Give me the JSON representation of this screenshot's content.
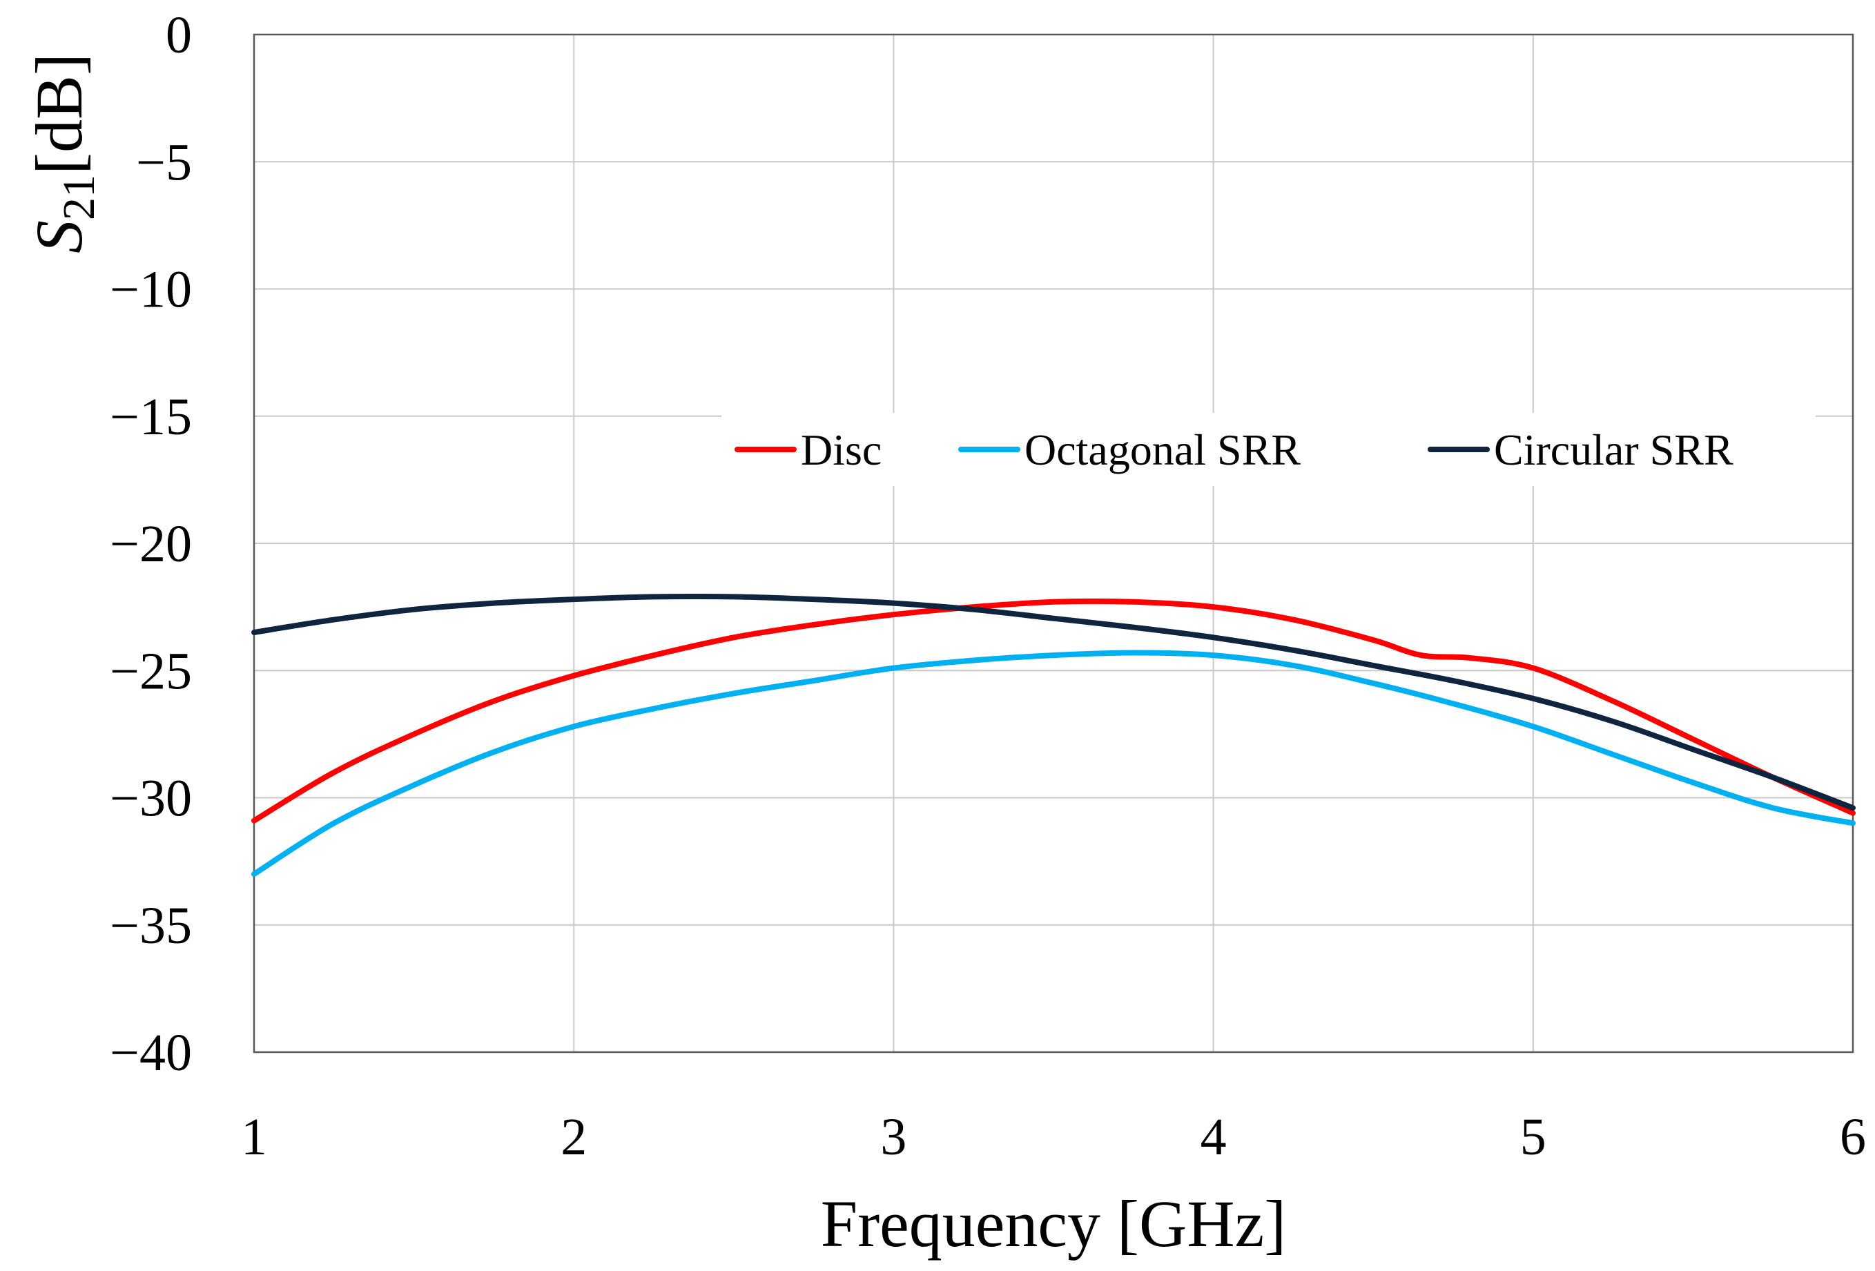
{
  "chart_data": {
    "type": "line",
    "title": "",
    "xlabel": "Frequency [GHz]",
    "ylabel": {
      "base": "S",
      "subscript": "21",
      "unit": "[dB]"
    },
    "xlim": [
      1,
      6
    ],
    "ylim": [
      -40,
      0
    ],
    "xticks": [
      1,
      2,
      3,
      4,
      5,
      6
    ],
    "xtick_labels": [
      "1",
      "2",
      "3",
      "4",
      "5",
      "6"
    ],
    "yticks": [
      0,
      -5,
      -10,
      -15,
      -20,
      -25,
      -30,
      -35,
      -40
    ],
    "ytick_labels": [
      "0",
      "−5",
      "−10",
      "−15",
      "−20",
      "−25",
      "−30",
      "−35",
      "−40"
    ],
    "grid": true,
    "legend_position": "inside upper-right, horizontal",
    "series": [
      {
        "name": "Disc",
        "color": "#ff0000",
        "x": [
          1.0,
          1.25,
          1.5,
          1.75,
          2.0,
          2.25,
          2.5,
          2.75,
          3.0,
          3.25,
          3.5,
          3.75,
          4.0,
          4.25,
          4.5,
          4.65,
          4.8,
          5.0,
          5.25,
          5.5,
          5.75,
          6.0
        ],
        "y": [
          -30.9,
          -29.0,
          -27.5,
          -26.2,
          -25.2,
          -24.4,
          -23.7,
          -23.2,
          -22.8,
          -22.5,
          -22.3,
          -22.3,
          -22.5,
          -23.0,
          -23.8,
          -24.4,
          -24.5,
          -24.9,
          -26.2,
          -27.7,
          -29.2,
          -30.6
        ]
      },
      {
        "name": "Octagonal SRR",
        "color": "#00b0f0",
        "x": [
          1.0,
          1.25,
          1.5,
          1.75,
          2.0,
          2.25,
          2.5,
          2.75,
          3.0,
          3.25,
          3.5,
          3.75,
          4.0,
          4.25,
          4.5,
          4.75,
          5.0,
          5.25,
          5.5,
          5.75,
          6.0
        ],
        "y": [
          -33.0,
          -31.0,
          -29.5,
          -28.2,
          -27.2,
          -26.5,
          -25.9,
          -25.4,
          -24.9,
          -24.6,
          -24.4,
          -24.3,
          -24.4,
          -24.8,
          -25.5,
          -26.3,
          -27.2,
          -28.3,
          -29.4,
          -30.4,
          -31.0
        ]
      },
      {
        "name": "Circular SRR",
        "color": "#0f243e",
        "x": [
          1.0,
          1.25,
          1.5,
          1.75,
          2.0,
          2.25,
          2.5,
          2.75,
          3.0,
          3.25,
          3.5,
          3.75,
          4.0,
          4.25,
          4.5,
          4.75,
          5.0,
          5.25,
          5.5,
          5.75,
          6.0
        ],
        "y": [
          -23.5,
          -23.0,
          -22.6,
          -22.35,
          -22.2,
          -22.1,
          -22.1,
          -22.2,
          -22.35,
          -22.6,
          -22.95,
          -23.3,
          -23.7,
          -24.2,
          -24.8,
          -25.4,
          -26.1,
          -27.0,
          -28.1,
          -29.2,
          -30.4
        ]
      }
    ]
  }
}
